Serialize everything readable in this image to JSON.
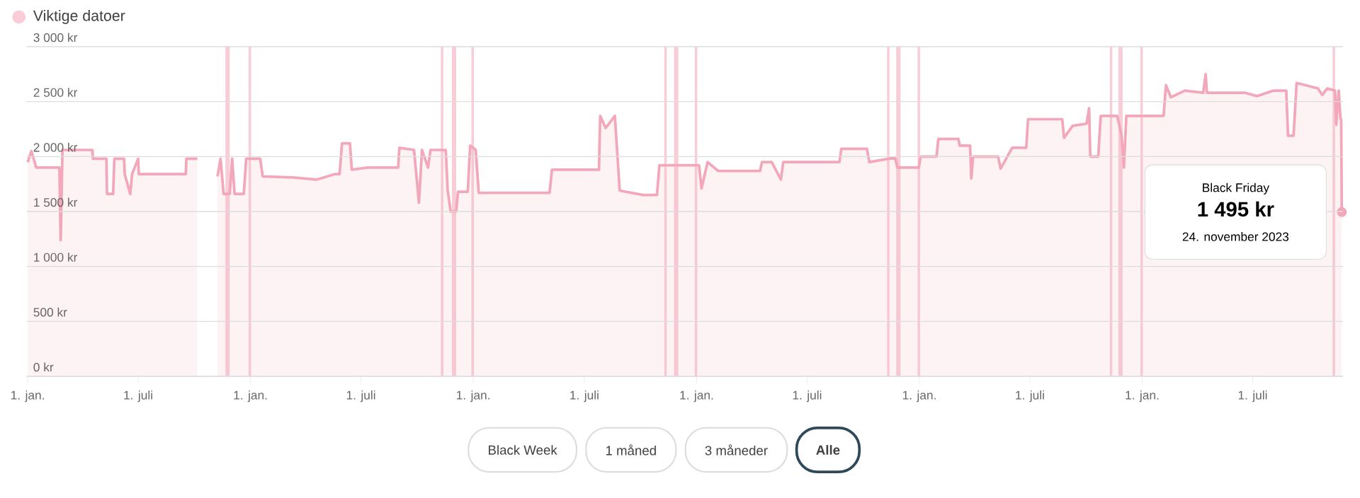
{
  "chart_data": {
    "type": "area",
    "legend_title": "Viktige datoer",
    "grid": "y",
    "color": "#f2a7bb",
    "x": [
      "2018-01-01",
      "2018-01-07",
      "2018-01-15",
      "2018-02-22",
      "2018-02-24",
      "2018-02-27",
      "2018-04-17",
      "2018-04-18",
      "2018-05-10",
      "2018-05-11",
      "2018-05-21",
      "2018-05-23",
      "2018-06-08",
      "2018-06-09",
      "2018-06-18",
      "2018-06-21",
      "2018-07-01",
      "2018-07-02",
      "2018-09-17",
      "2018-09-18",
      "2018-10-06",
      "2018-10-20",
      "2018-11-08",
      "2018-11-13",
      "2018-11-18",
      "2018-11-28",
      "2018-12-02",
      "2018-12-06",
      "2018-12-21",
      "2018-12-25",
      "2019-01-17",
      "2019-01-21",
      "2019-03-12",
      "2019-04-19",
      "2019-05-19",
      "2019-05-27",
      "2019-05-31",
      "2019-06-13",
      "2019-06-16",
      "2019-07-12",
      "2019-08-31",
      "2019-09-02",
      "2019-09-26",
      "2019-10-04",
      "2019-10-09",
      "2019-10-19",
      "2019-10-23",
      "2019-11-17",
      "2019-11-20",
      "2019-11-25",
      "2019-12-04",
      "2019-12-07",
      "2019-12-23",
      "2019-12-27",
      "2020-01-05",
      "2020-01-10",
      "2020-05-05",
      "2020-05-09",
      "2020-07-25",
      "2020-07-27",
      "2020-08-05",
      "2020-08-20",
      "2020-08-28",
      "2020-10-05",
      "2020-10-28",
      "2020-11-01",
      "2021-01-05",
      "2021-01-09",
      "2021-01-19",
      "2021-02-05",
      "2021-04-15",
      "2021-04-18",
      "2021-05-04",
      "2021-05-19",
      "2021-05-23",
      "2021-08-23",
      "2021-08-26",
      "2021-10-07",
      "2021-10-11",
      "2021-11-22",
      "2021-11-26",
      "2021-12-31",
      "2022-01-03",
      "2022-01-29",
      "2022-02-01",
      "2022-03-06",
      "2022-03-08",
      "2022-03-25",
      "2022-03-27",
      "2022-03-30",
      "2022-05-10",
      "2022-05-14",
      "2022-06-02",
      "2022-06-25",
      "2022-06-28",
      "2022-08-23",
      "2022-08-26",
      "2022-09-09",
      "2022-10-02",
      "2022-10-06",
      "2022-10-08",
      "2022-10-21",
      "2022-10-25",
      "2022-11-21",
      "2022-11-28",
      "2022-12-02",
      "2022-12-06",
      "2023-02-05",
      "2023-02-09",
      "2023-02-17",
      "2023-03-12",
      "2023-04-11",
      "2023-04-15",
      "2023-04-17",
      "2023-06-19",
      "2023-07-08",
      "2023-08-04",
      "2023-08-25",
      "2023-08-28",
      "2023-09-06",
      "2023-09-11",
      "2023-10-16",
      "2023-10-23",
      "2023-10-31",
      "2023-11-13",
      "2023-11-15",
      "2023-11-19",
      "2023-11-22",
      "2023-11-23",
      "2023-11-24"
    ],
    "values": [
      1950,
      2050,
      1900,
      1900,
      1240,
      2060,
      2060,
      1980,
      1980,
      1660,
      1660,
      1980,
      1980,
      1840,
      1660,
      1840,
      1980,
      1840,
      1840,
      1980,
      1980,
      null,
      1820,
      1980,
      1660,
      1660,
      1980,
      1660,
      1660,
      1980,
      1980,
      1820,
      1810,
      1790,
      1840,
      1840,
      2120,
      2120,
      1880,
      1900,
      1900,
      2080,
      2060,
      1580,
      2060,
      1900,
      2060,
      2060,
      1700,
      1500,
      1500,
      1680,
      1680,
      2100,
      2060,
      1670,
      1670,
      1880,
      1880,
      2370,
      2260,
      2370,
      1690,
      1650,
      1650,
      1920,
      1920,
      1710,
      1950,
      1870,
      1870,
      1950,
      1950,
      1790,
      1950,
      1950,
      2070,
      2070,
      1950,
      1990,
      1900,
      1900,
      2000,
      2000,
      2160,
      2160,
      2100,
      2100,
      1800,
      2000,
      2000,
      1890,
      2080,
      2080,
      2340,
      2340,
      2170,
      2280,
      2300,
      2440,
      2000,
      2000,
      2370,
      2370,
      2200,
      1900,
      2370,
      2370,
      2650,
      2540,
      2600,
      2580,
      2750,
      2580,
      2580,
      2550,
      2600,
      2600,
      2190,
      2190,
      2670,
      2620,
      2560,
      2620,
      2600,
      2290,
      2600,
      2340,
      2340,
      1495
    ],
    "xlim": [
      "2017-12-30",
      "2023-11-26"
    ],
    "xticks": [
      {
        "value": "2018-01-01",
        "label": "1. jan."
      },
      {
        "value": "2018-07-01",
        "label": "1. juli"
      },
      {
        "value": "2019-01-01",
        "label": "1. jan."
      },
      {
        "value": "2019-07-01",
        "label": "1. juli"
      },
      {
        "value": "2020-01-01",
        "label": "1. jan."
      },
      {
        "value": "2020-07-01",
        "label": "1. juli"
      },
      {
        "value": "2021-01-01",
        "label": "1. jan."
      },
      {
        "value": "2021-07-01",
        "label": "1. juli"
      },
      {
        "value": "2022-01-01",
        "label": "1. jan."
      },
      {
        "value": "2022-07-01",
        "label": "1. juli"
      },
      {
        "value": "2023-01-01",
        "label": "1. jan."
      },
      {
        "value": "2023-07-01",
        "label": "1. juli"
      }
    ],
    "ylim": [
      0,
      3000
    ],
    "yticks": [
      {
        "value": 0,
        "label": "0 kr"
      },
      {
        "value": 500,
        "label": "500 kr"
      },
      {
        "value": 1000,
        "label": "1 000 kr"
      },
      {
        "value": 1500,
        "label": "1 500 kr"
      },
      {
        "value": 2000,
        "label": "2 000 kr"
      },
      {
        "value": 2500,
        "label": "2 500 kr"
      },
      {
        "value": 3000,
        "label": "3 000 kr"
      }
    ],
    "ref_lines": [
      {
        "axis": "x",
        "value": "2018-11-23",
        "color": "#f9cdd8"
      },
      {
        "axis": "x",
        "value": "2018-11-26",
        "color": "#f9cdd8"
      },
      {
        "axis": "x",
        "value": "2018-12-31",
        "color": "#f9cdd8"
      },
      {
        "axis": "x",
        "value": "2019-11-11",
        "color": "#f9cdd8"
      },
      {
        "axis": "x",
        "value": "2019-11-29",
        "color": "#f9cdd8"
      },
      {
        "axis": "x",
        "value": "2019-12-02",
        "color": "#f9cdd8"
      },
      {
        "axis": "x",
        "value": "2019-12-31",
        "color": "#f9cdd8"
      },
      {
        "axis": "x",
        "value": "2020-11-11",
        "color": "#f9cdd8"
      },
      {
        "axis": "x",
        "value": "2020-11-27",
        "color": "#f9cdd8"
      },
      {
        "axis": "x",
        "value": "2020-11-30",
        "color": "#f9cdd8"
      },
      {
        "axis": "x",
        "value": "2020-12-31",
        "color": "#f9cdd8"
      },
      {
        "axis": "x",
        "value": "2021-11-11",
        "color": "#f9cdd8"
      },
      {
        "axis": "x",
        "value": "2021-11-26",
        "color": "#f9cdd8"
      },
      {
        "axis": "x",
        "value": "2021-11-29",
        "color": "#f9cdd8"
      },
      {
        "axis": "x",
        "value": "2021-12-31",
        "color": "#f9cdd8"
      },
      {
        "axis": "x",
        "value": "2022-11-11",
        "color": "#f9cdd8"
      },
      {
        "axis": "x",
        "value": "2022-11-25",
        "color": "#f9cdd8"
      },
      {
        "axis": "x",
        "value": "2022-11-28",
        "color": "#f9cdd8"
      },
      {
        "axis": "x",
        "value": "2022-12-31",
        "color": "#f9cdd8"
      },
      {
        "axis": "x",
        "value": "2023-11-11",
        "color": "#f9cdd8"
      }
    ],
    "annotations": [
      "Black Friday",
      "1 495 kr",
      "24. november 2023",
      "Black Week",
      "1 måned",
      "3 måneder",
      "Alle"
    ]
  }
}
